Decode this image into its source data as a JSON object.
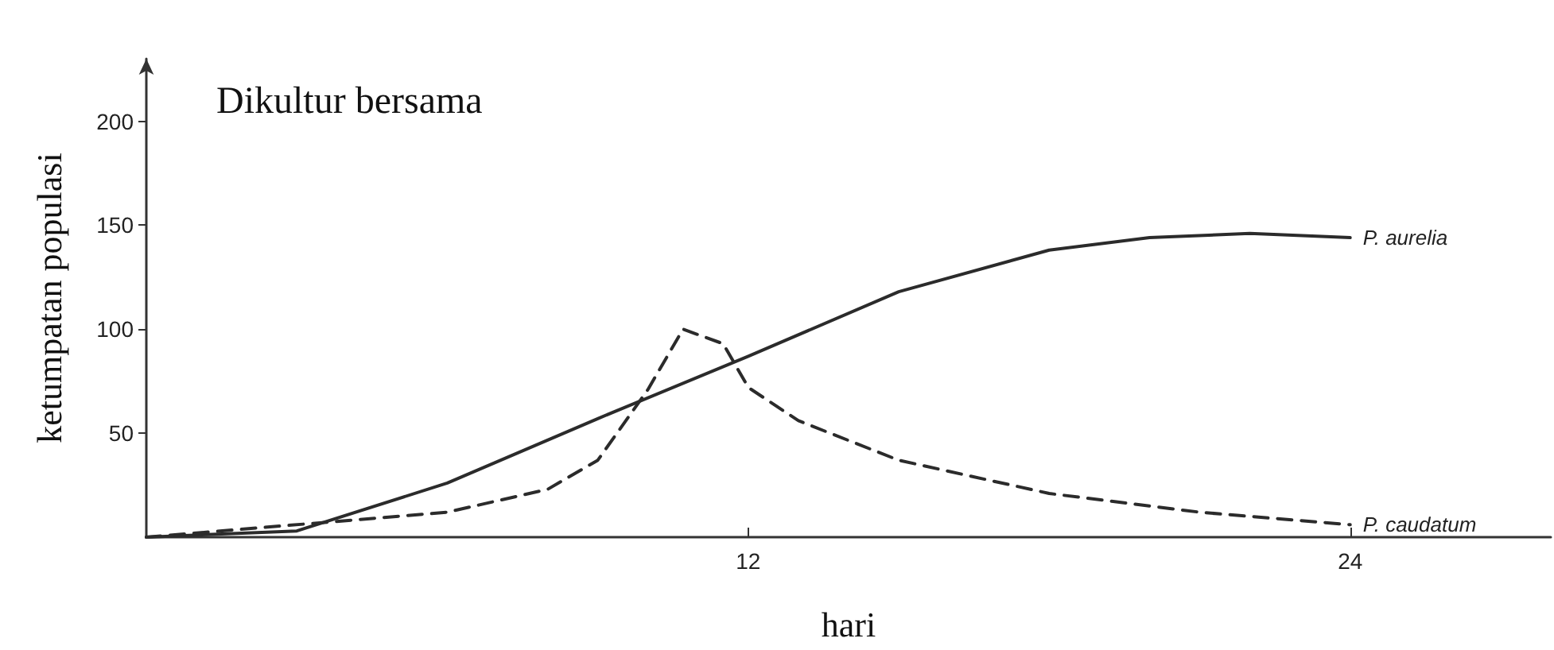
{
  "chart_data": {
    "type": "line",
    "xlabel": "hari",
    "ylabel": "ketumpatan populasi",
    "annotations": [
      "Dikultur bersama"
    ],
    "xlim": [
      0,
      28
    ],
    "xticks": [
      12,
      24
    ],
    "ylim": [
      0,
      230
    ],
    "yticks": [
      50,
      100,
      150,
      200
    ],
    "grid": false,
    "legend": false,
    "marker": "none",
    "series": [
      {
        "name": "P. aurelia",
        "color": "#2b2b2b",
        "line_style": "solid",
        "x": [
          0,
          3,
          6,
          9,
          12,
          15,
          18,
          20,
          22,
          24
        ],
        "values": [
          0,
          3,
          26,
          57,
          87,
          118,
          138,
          144,
          146,
          144
        ]
      },
      {
        "name": "P. caudatum",
        "color": "#2b2b2b",
        "line_style": "dashed",
        "x": [
          0,
          6,
          8,
          9,
          10,
          10.7,
          11.5,
          12,
          13,
          15,
          18,
          21,
          24
        ],
        "values": [
          0,
          12,
          23,
          37,
          71,
          100,
          93,
          72,
          56,
          37,
          21,
          12,
          6
        ]
      }
    ]
  }
}
